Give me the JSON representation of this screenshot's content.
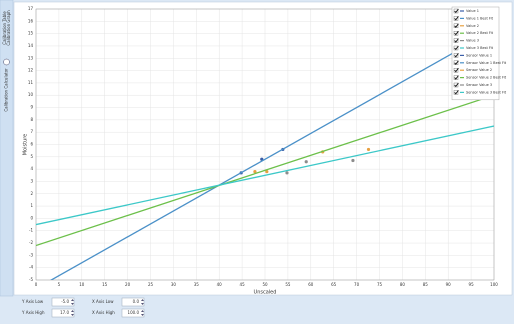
{
  "sidebar": {
    "tabs": [
      "Calibration Table",
      "Calibration Graph"
    ],
    "info": "Calibration Calculator"
  },
  "chart_data": {
    "type": "scatter",
    "x_label": "Unscaled",
    "y_label": "Moisture",
    "xlim": [
      0,
      100
    ],
    "ylim": [
      -5,
      17
    ],
    "xticks": [
      0,
      5,
      10,
      15,
      20,
      25,
      30,
      35,
      40,
      45,
      50,
      55,
      60,
      65,
      70,
      75,
      80,
      85,
      90,
      95,
      100
    ],
    "yticks": [
      -5,
      -4,
      -3,
      -2,
      -1,
      0,
      1,
      2,
      3,
      4,
      5,
      6,
      7,
      8,
      9,
      10,
      11,
      12,
      13,
      14,
      15,
      16,
      17
    ],
    "grid": true,
    "legend": "top-right",
    "series": [
      {
        "name": "Value 1",
        "kind": "points",
        "color": "#3b5ea8",
        "x": [
          44.8,
          49.3,
          53.9
        ],
        "values": [
          3.7,
          4.8,
          5.6
        ]
      },
      {
        "name": "Value 1 Best Fit",
        "kind": "line",
        "color": "#4a90c8",
        "x": [
          0,
          100
        ],
        "values": [
          -5.7,
          15.3
        ]
      },
      {
        "name": "Value 2",
        "kind": "points",
        "color": "#e8a040",
        "x": [
          47.8,
          50.4,
          62.6,
          72.6
        ],
        "values": [
          3.8,
          3.8,
          5.4,
          5.6
        ]
      },
      {
        "name": "Value 2 Best Fit",
        "kind": "line",
        "color": "#6cc04a",
        "x": [
          0,
          100
        ],
        "values": [
          -2.2,
          10
        ]
      },
      {
        "name": "Value 3",
        "kind": "points",
        "color": "#8c8c8c",
        "x": [
          54.8,
          59,
          69.2
        ],
        "values": [
          3.7,
          4.6,
          4.7
        ]
      },
      {
        "name": "Value 3 Best Fit",
        "kind": "line",
        "color": "#3cc8c8",
        "x": [
          0,
          100
        ],
        "values": [
          -0.5,
          7.5
        ]
      },
      {
        "name": "Sensor Value 1",
        "kind": "points",
        "color": "#3b5ea8",
        "x": [],
        "values": []
      },
      {
        "name": "Sensor Value 1 Best Fit",
        "kind": "line",
        "color": "#4a90c8",
        "x": [],
        "values": []
      },
      {
        "name": "Sensor Value 2",
        "kind": "points",
        "color": "#e8a040",
        "x": [],
        "values": []
      },
      {
        "name": "Sensor Value 2 Best Fit",
        "kind": "line",
        "color": "#6cc04a",
        "x": [],
        "values": []
      },
      {
        "name": "Sensor Value 3",
        "kind": "points",
        "color": "#8c8c8c",
        "x": [],
        "values": []
      },
      {
        "name": "Sensor Value 3 Best Fit",
        "kind": "line",
        "color": "#3cc8c8",
        "x": [],
        "values": []
      }
    ]
  },
  "controls": [
    {
      "label": "Y Axis Low",
      "value": "-5.0"
    },
    {
      "label": "X Axis Low",
      "value": "0.0"
    },
    {
      "label": "Y Axis High",
      "value": "17.0"
    },
    {
      "label": "X Axis High",
      "value": "100.0"
    }
  ]
}
